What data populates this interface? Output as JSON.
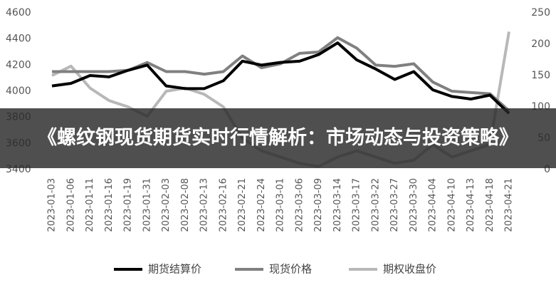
{
  "chart_data": {
    "type": "line",
    "categories": [
      "2023-01-03",
      "2023-01-06",
      "2023-01-11",
      "2023-01-16",
      "2023-01-19",
      "2023-01-31",
      "2023-02-03",
      "2023-02-08",
      "2023-02-13",
      "2023-02-16",
      "2023-02-21",
      "2023-02-24",
      "2023-03-01",
      "2023-03-06",
      "2023-03-09",
      "2023-03-14",
      "2023-03-17",
      "2023-03-22",
      "2023-03-27",
      "2023-03-30",
      "2023-04-04",
      "2023-04-10",
      "2023-04-13",
      "2023-04-18",
      "2023-04-21"
    ],
    "series": [
      {
        "name": "期货结算价",
        "color": "#000000",
        "axis": "y",
        "values": [
          4040,
          4060,
          4120,
          4110,
          4160,
          4200,
          4040,
          4020,
          4020,
          4080,
          4230,
          4200,
          4220,
          4230,
          4280,
          4370,
          4240,
          4170,
          4090,
          4150,
          4010,
          3960,
          3940,
          3970,
          3830
        ]
      },
      {
        "name": "现货价格",
        "color": "#808080",
        "axis": "y",
        "values": [
          4150,
          4150,
          4150,
          4150,
          4160,
          4220,
          4150,
          4150,
          4130,
          4150,
          4270,
          4180,
          4210,
          4290,
          4300,
          4410,
          4330,
          4200,
          4190,
          4210,
          4070,
          4000,
          3990,
          3980,
          3850
        ]
      },
      {
        "name": "期权收盘价",
        "color": "#b8b8b8",
        "axis": "y2",
        "values": [
          150,
          165,
          130,
          110,
          100,
          85,
          125,
          130,
          120,
          100,
          50,
          30,
          20,
          10,
          5,
          20,
          30,
          20,
          10,
          15,
          40,
          20,
          30,
          40,
          220
        ]
      }
    ],
    "ylim": [
      3400,
      4600
    ],
    "yticks": [
      3400,
      3600,
      3800,
      4000,
      4200,
      4400,
      4600
    ],
    "y2lim": [
      0,
      250
    ],
    "y2ticks": [
      0,
      50,
      100,
      150,
      200,
      250
    ],
    "grid": false
  },
  "banner": {
    "title": "《螺纹钢现货期货实时行情解析：市场动态与投资策略》"
  }
}
